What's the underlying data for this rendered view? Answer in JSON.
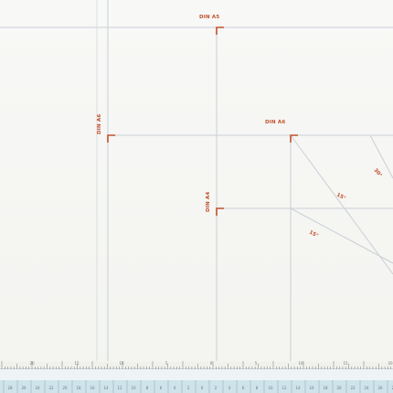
{
  "labels": {
    "din_a5": "DIN A5",
    "din_a6_vertical": "DIN A6",
    "din_a6_horizontal": "DIN A6",
    "din_a4": "DIN A4"
  },
  "angles": {
    "angle_a": "30°",
    "angle_b": "15°",
    "angle_c": "15°"
  },
  "ruler": {
    "upper_ticks": [
      "20",
      "15",
      "10",
      "5",
      "0",
      "5",
      "10",
      "15",
      "20"
    ],
    "lower_ticks": [
      "28",
      "26",
      "24",
      "22",
      "20",
      "18",
      "16",
      "14",
      "12",
      "10",
      "8",
      "6",
      "4",
      "2",
      "0",
      "2",
      "4",
      "6",
      "8",
      "10",
      "12",
      "14",
      "16",
      "18",
      "20",
      "22",
      "24",
      "26",
      "28"
    ]
  },
  "colors": {
    "grid_line": "#c9d0d6",
    "marker": "#c0502c",
    "ruler_band": "#cfe3ea",
    "ruler_dark": "#5a7f8c"
  }
}
